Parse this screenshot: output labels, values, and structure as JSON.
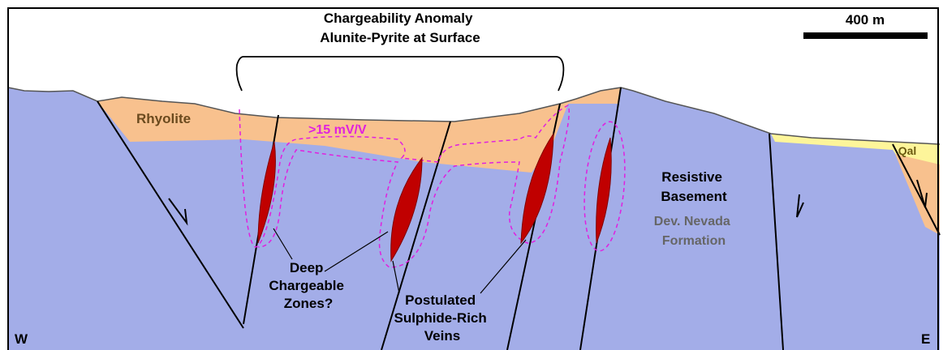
{
  "title": {
    "lines": [
      "Chargeability Anomaly",
      "Alunite-Pyrite at Surface"
    ]
  },
  "scale_bar": {
    "label": "400 m"
  },
  "units": {
    "rhyolite": "Rhyolite",
    "qal": "Qal",
    "basement": {
      "lines": [
        "Resistive",
        "Basement"
      ]
    },
    "formation": {
      "lines": [
        "Dev. Nevada",
        "Formation"
      ]
    }
  },
  "anomaly": {
    "label": ">15 mV/V"
  },
  "callouts": {
    "zones": {
      "lines": [
        "Deep",
        "Chargeable",
        "Zones?"
      ]
    },
    "veins": {
      "lines": [
        "Postulated",
        "Sulphide-Rich",
        "Veins"
      ]
    }
  },
  "directions": {
    "west": "W",
    "east": "E"
  }
}
